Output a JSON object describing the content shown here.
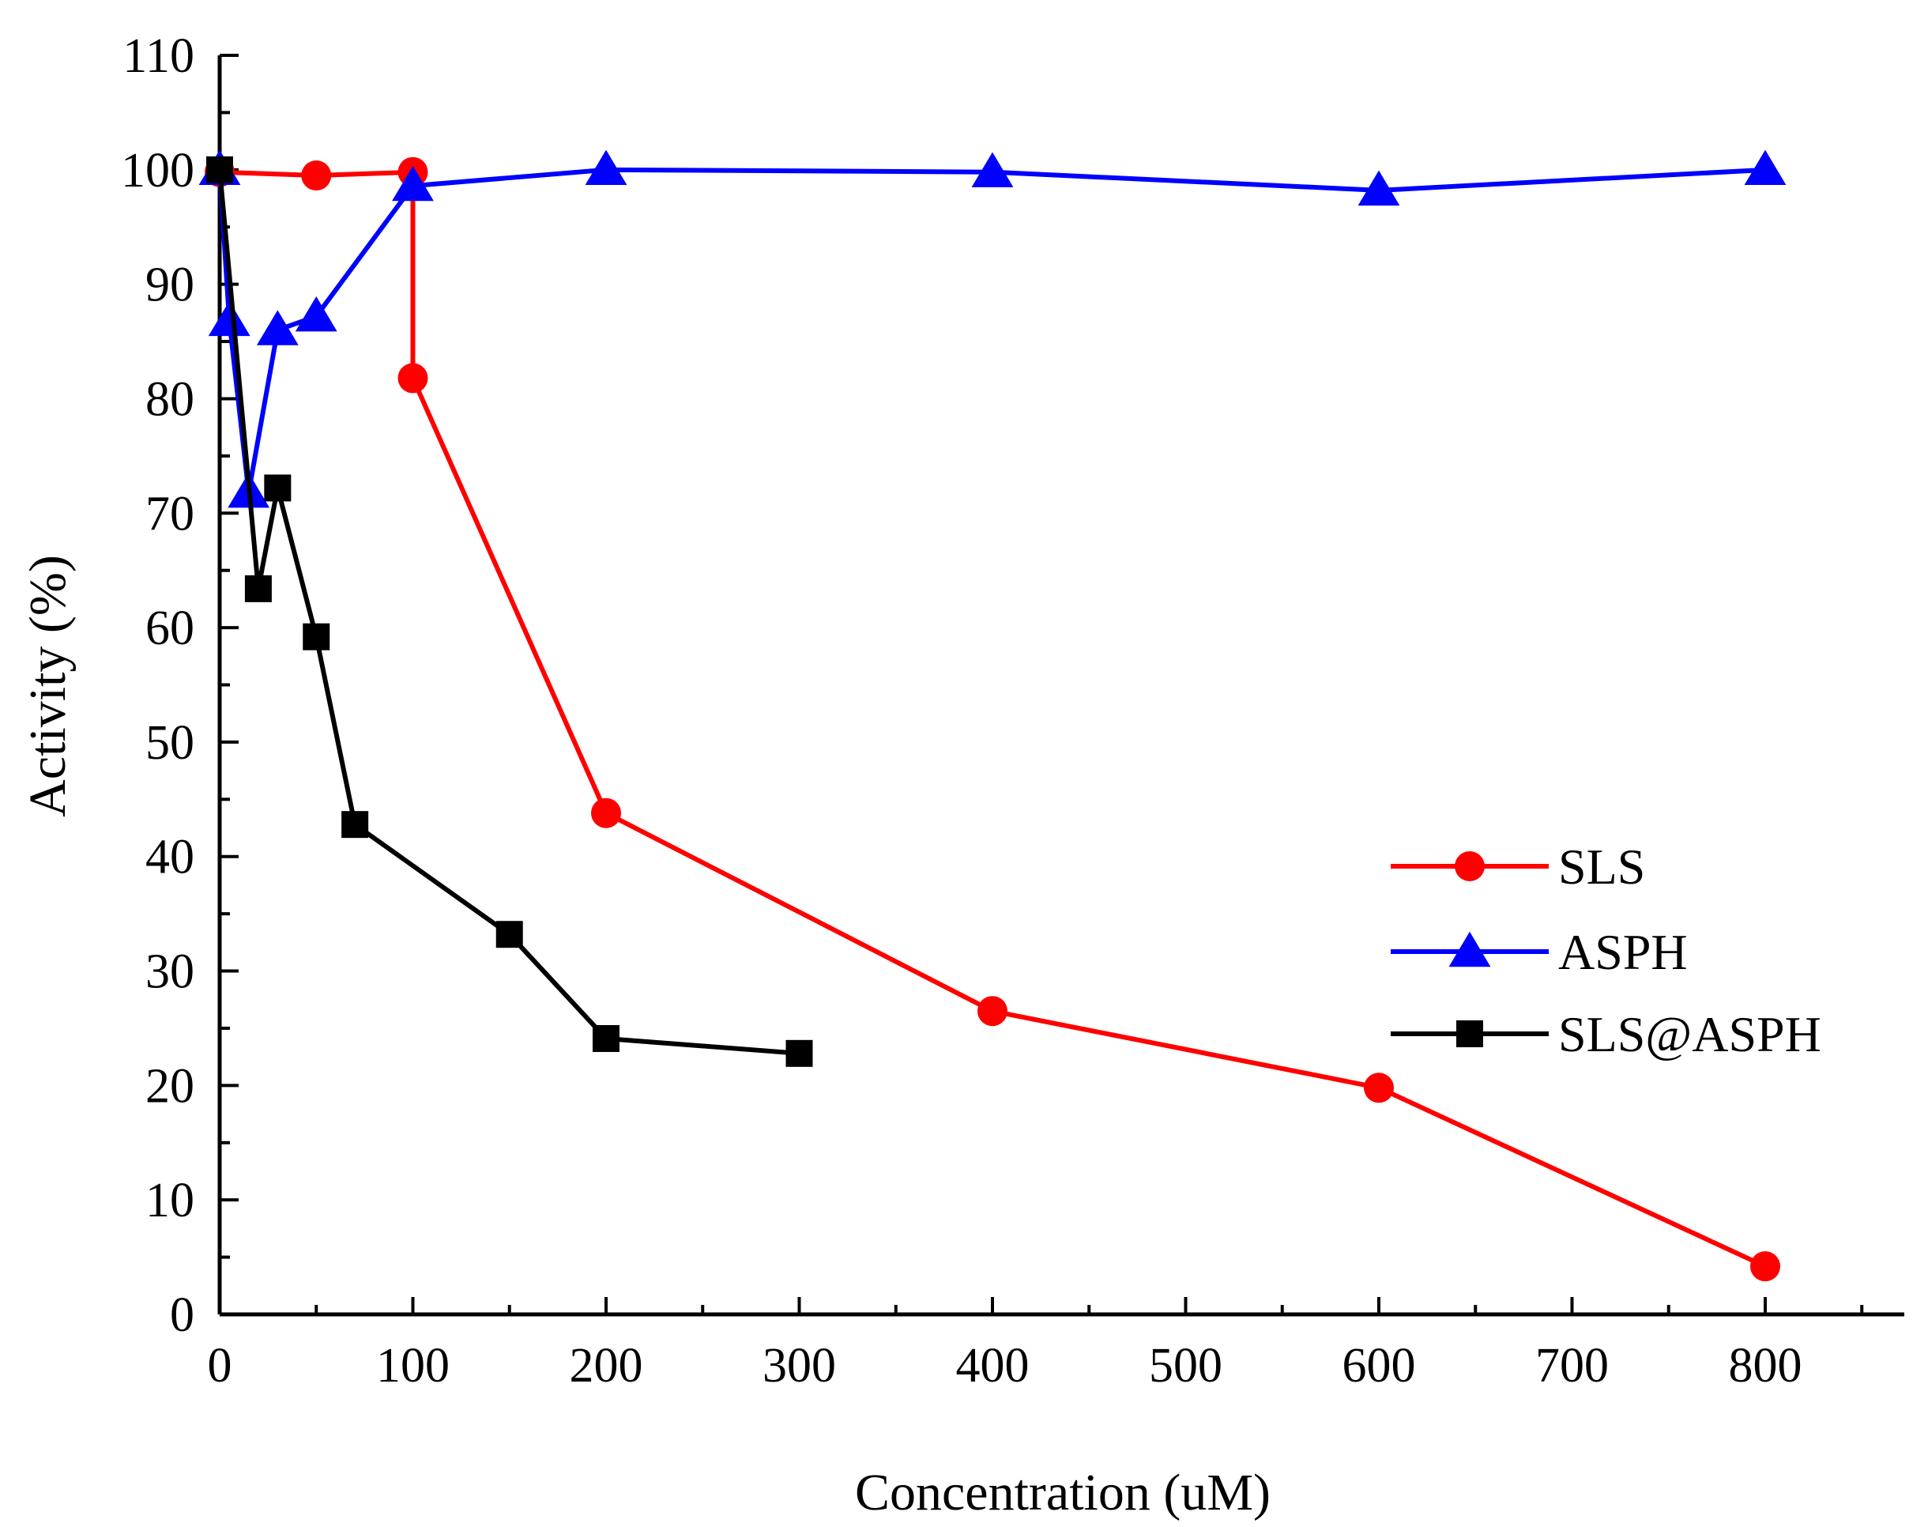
{
  "chart_data": {
    "type": "line",
    "title": "",
    "xlabel": "Concentration (uM)",
    "ylabel": "Activity (%)",
    "xlim": [
      0,
      870
    ],
    "ylim": [
      0,
      110
    ],
    "x_major_ticks": [
      0,
      100,
      200,
      300,
      400,
      500,
      600,
      700,
      800
    ],
    "x_tick_labels": [
      "0",
      "100",
      "200",
      "300",
      "400",
      "500",
      "600",
      "700",
      "800"
    ],
    "x_minor_ticks": [
      50,
      150,
      250,
      350,
      450,
      550,
      650,
      750,
      850
    ],
    "y_major_ticks": [
      0,
      10,
      20,
      30,
      40,
      50,
      60,
      70,
      80,
      90,
      100,
      110
    ],
    "y_tick_labels": [
      "0",
      "10",
      "20",
      "30",
      "40",
      "50",
      "60",
      "70",
      "80",
      "90",
      "100",
      "110"
    ],
    "y_minor_ticks": [
      5,
      15,
      25,
      35,
      45,
      55,
      65,
      75,
      85,
      95,
      105
    ],
    "grid": false,
    "legend_position": "right-center",
    "series": [
      {
        "name": "SLS",
        "color": "#ff0000",
        "marker": "circle",
        "x": [
          0,
          50,
          100,
          100,
          200,
          400,
          600,
          800
        ],
        "y": [
          99.8,
          99.5,
          99.8,
          81.8,
          43.8,
          26.5,
          19.8,
          4.2
        ]
      },
      {
        "name": "ASPH",
        "color": "#0000ff",
        "marker": "triangle",
        "x": [
          0,
          5,
          15,
          30,
          50,
          100,
          200,
          400,
          600,
          800
        ],
        "y": [
          100,
          86.8,
          71.8,
          86.0,
          87.2,
          98.6,
          100,
          99.8,
          98.2,
          100
        ]
      },
      {
        "name": "SLS@ASPH",
        "color": "#000000",
        "marker": "square",
        "x": [
          0,
          20,
          30,
          50,
          70,
          150,
          200,
          300
        ],
        "y": [
          100,
          63.4,
          72.2,
          59.2,
          42.8,
          33.2,
          24.1,
          22.8
        ]
      }
    ]
  }
}
